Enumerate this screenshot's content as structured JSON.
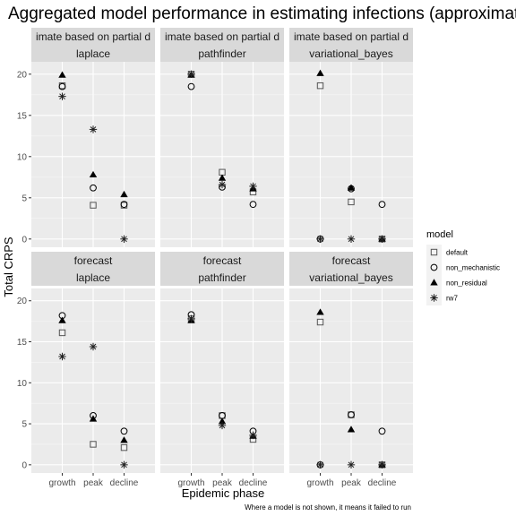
{
  "chart_data": {
    "type": "scatter",
    "title": "Aggregated model performance in estimating infections (approximat",
    "xlabel": "Epidemic phase",
    "ylabel": "Total CRPS",
    "caption": "Where a model is not shown, it means it failed to run",
    "categories": [
      "growth",
      "peak",
      "decline"
    ],
    "y_ticks": [
      0,
      5,
      10,
      15,
      20
    ],
    "ylim": [
      -1,
      21.5
    ],
    "grid": true,
    "legend": {
      "title": "model",
      "position": "right",
      "entries": [
        {
          "name": "default",
          "shape": "square"
        },
        {
          "name": "non_mechanistic",
          "shape": "circle"
        },
        {
          "name": "non_residual",
          "shape": "triangle"
        },
        {
          "name": "rw7",
          "shape": "asterisk"
        }
      ]
    },
    "row_labels": [
      "imate based on partial d",
      "forecast"
    ],
    "col_labels": [
      "laplace",
      "pathfinder",
      "variational_bayes"
    ],
    "panels": [
      {
        "row": 0,
        "col": 0,
        "series": [
          {
            "name": "default",
            "values": [
              18.6,
              4.1,
              4.1
            ]
          },
          {
            "name": "non_mechanistic",
            "values": [
              18.5,
              6.2,
              4.2
            ]
          },
          {
            "name": "non_residual",
            "values": [
              19.9,
              7.8,
              5.4
            ]
          },
          {
            "name": "rw7",
            "values": [
              17.3,
              13.3,
              0.0
            ]
          }
        ]
      },
      {
        "row": 0,
        "col": 1,
        "series": [
          {
            "name": "default",
            "values": [
              20.0,
              8.1,
              5.7
            ]
          },
          {
            "name": "non_mechanistic",
            "values": [
              18.5,
              6.3,
              4.2
            ]
          },
          {
            "name": "non_residual",
            "values": [
              19.9,
              7.4,
              6.1
            ]
          },
          {
            "name": "rw7",
            "values": [
              20.0,
              6.6,
              6.4
            ]
          }
        ]
      },
      {
        "row": 0,
        "col": 2,
        "series": [
          {
            "name": "default",
            "values": [
              18.6,
              4.5,
              0.0
            ]
          },
          {
            "name": "non_mechanistic",
            "values": [
              0.0,
              6.1,
              4.2
            ]
          },
          {
            "name": "non_residual",
            "values": [
              20.1,
              6.2,
              0.0
            ]
          },
          {
            "name": "rw7",
            "values": [
              0.0,
              0.0,
              0.0
            ]
          }
        ]
      },
      {
        "row": 1,
        "col": 0,
        "series": [
          {
            "name": "default",
            "values": [
              16.1,
              2.5,
              2.1
            ]
          },
          {
            "name": "non_mechanistic",
            "values": [
              18.2,
              6.0,
              4.1
            ]
          },
          {
            "name": "non_residual",
            "values": [
              17.6,
              5.6,
              3.0
            ]
          },
          {
            "name": "rw7",
            "values": [
              13.2,
              14.4,
              0.0
            ]
          }
        ]
      },
      {
        "row": 1,
        "col": 1,
        "series": [
          {
            "name": "default",
            "values": [
              17.8,
              6.0,
              3.1
            ]
          },
          {
            "name": "non_mechanistic",
            "values": [
              18.3,
              6.0,
              4.1
            ]
          },
          {
            "name": "non_residual",
            "values": [
              17.6,
              5.3,
              3.5
            ]
          },
          {
            "name": "rw7",
            "values": [
              17.8,
              4.8,
              3.6
            ]
          }
        ]
      },
      {
        "row": 1,
        "col": 2,
        "series": [
          {
            "name": "default",
            "values": [
              17.4,
              6.1,
              0.0
            ]
          },
          {
            "name": "non_mechanistic",
            "values": [
              0.0,
              6.1,
              4.1
            ]
          },
          {
            "name": "non_residual",
            "values": [
              18.6,
              4.3,
              0.0
            ]
          },
          {
            "name": "rw7",
            "values": [
              0.0,
              0.0,
              0.0
            ]
          }
        ]
      }
    ]
  }
}
